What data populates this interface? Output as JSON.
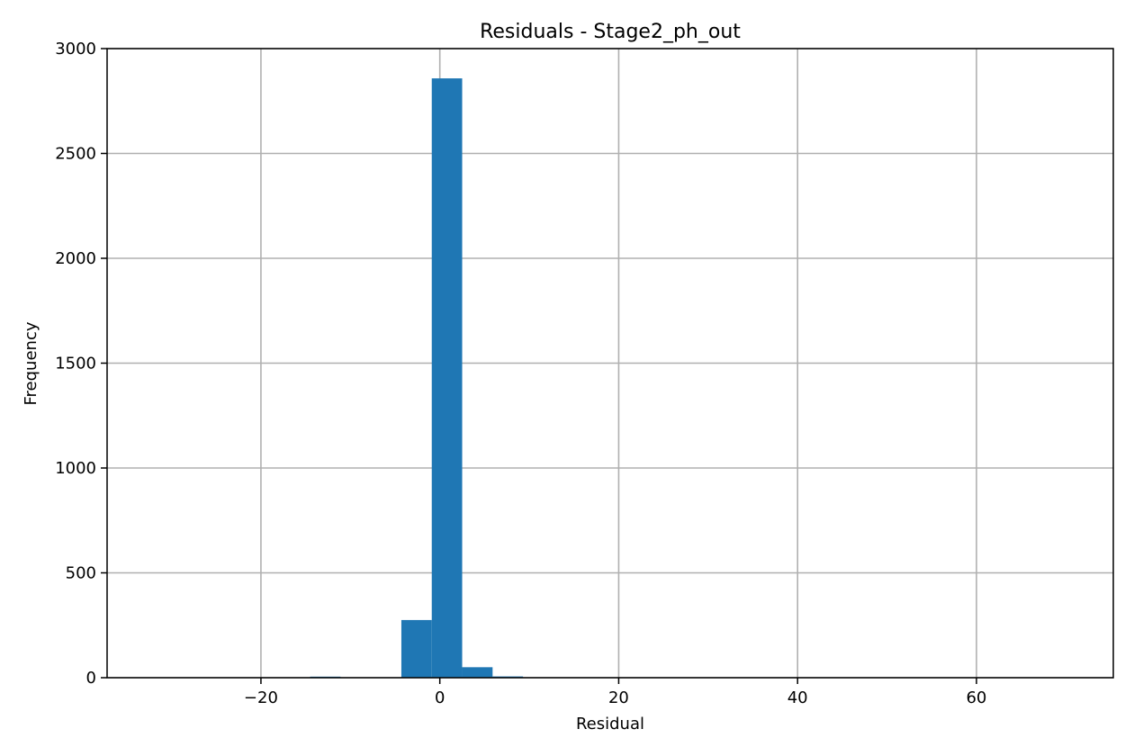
{
  "chart_data": {
    "type": "bar",
    "title": "Residuals - Stage2_ph_out",
    "xlabel": "Residual",
    "ylabel": "Frequency",
    "xlim": [
      -37.2,
      75.3
    ],
    "ylim": [
      0,
      3000
    ],
    "xticks": [
      -20,
      0,
      20,
      40,
      60
    ],
    "xtick_labels": [
      "−20",
      "0",
      "20",
      "40",
      "60"
    ],
    "yticks": [
      0,
      500,
      1000,
      1500,
      2000,
      2500,
      3000
    ],
    "ytick_labels": [
      "0",
      "500",
      "1000",
      "1500",
      "2000",
      "2500",
      "3000"
    ],
    "grid": true,
    "bar_color": "#1f77b4",
    "bins": [
      {
        "x0": -14.5,
        "x1": -11.1,
        "value": 5
      },
      {
        "x0": -4.3,
        "x1": -0.9,
        "value": 275
      },
      {
        "x0": -0.9,
        "x1": 2.5,
        "value": 2858
      },
      {
        "x0": 2.5,
        "x1": 5.9,
        "value": 50
      },
      {
        "x0": 5.9,
        "x1": 9.3,
        "value": 6
      }
    ]
  }
}
